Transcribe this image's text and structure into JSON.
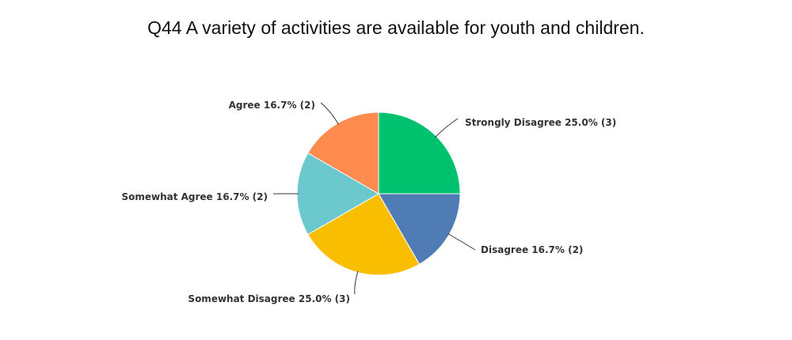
{
  "chart_data": {
    "type": "pie",
    "title": "Q44 A variety of activities are available for youth and children.",
    "slices": [
      {
        "label": "Strongly Disagree",
        "percent_label": "25.0%",
        "count": 3,
        "percent": 25.0,
        "color": "#00c16e"
      },
      {
        "label": "Disagree",
        "percent_label": "16.7%",
        "count": 2,
        "percent": 16.7,
        "color": "#507cb6"
      },
      {
        "label": "Somewhat Disagree",
        "percent_label": "25.0%",
        "count": 3,
        "percent": 25.0,
        "color": "#f9be00"
      },
      {
        "label": "Somewhat Agree",
        "percent_label": "16.7%",
        "count": 2,
        "percent": 16.7,
        "color": "#6bc8cd"
      },
      {
        "label": "Agree",
        "percent_label": "16.7%",
        "count": 2,
        "percent": 16.7,
        "color": "#ff8b4f"
      }
    ],
    "slice_label_texts": [
      "Strongly Disagree 25.0% (3)",
      "Disagree 16.7% (2)",
      "Somewhat Disagree 25.0% (3)",
      "Somewhat Agree 16.7% (2)",
      "Agree 16.7% (2)"
    ]
  }
}
